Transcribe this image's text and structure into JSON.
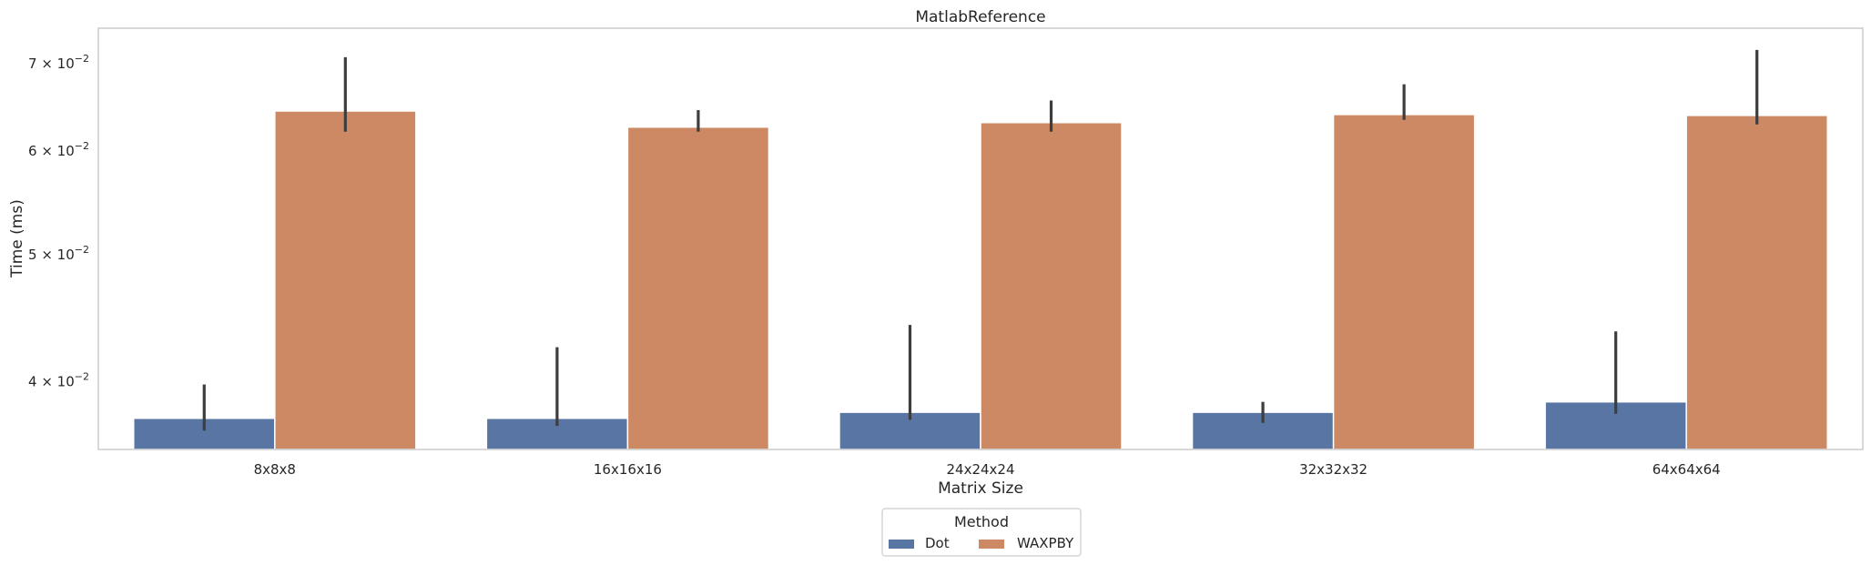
{
  "chart_data": {
    "type": "bar",
    "title": "MatlabReference",
    "xlabel": "Matrix Size",
    "ylabel": "Time (ms)",
    "yscale": "log",
    "ylim": [
      0.0355,
      0.0745
    ],
    "yticks": [
      {
        "value": 0.04,
        "base": "4",
        "exp": "−2"
      },
      {
        "value": 0.05,
        "base": "5",
        "exp": "−2"
      },
      {
        "value": 0.06,
        "base": "6",
        "exp": "−2"
      },
      {
        "value": 0.07,
        "base": "7",
        "exp": "−2"
      }
    ],
    "categories": [
      "8x8x8",
      "16x16x16",
      "24x24x24",
      "32x32x32",
      "64x64x64"
    ],
    "series": [
      {
        "name": "Dot",
        "color": "#5875a4",
        "values": [
          0.0375,
          0.0375,
          0.0379,
          0.0379,
          0.0386
        ],
        "err_low": [
          0.0367,
          0.037,
          0.0374,
          0.0372,
          0.0378
        ],
        "err_high": [
          0.0398,
          0.0425,
          0.0442,
          0.0386,
          0.0437
        ]
      },
      {
        "name": "WAXPBY",
        "color": "#cc8963",
        "values": [
          0.0644,
          0.0626,
          0.0631,
          0.064,
          0.0639
        ],
        "err_low": [
          0.0621,
          0.0621,
          0.0621,
          0.0634,
          0.0629
        ],
        "err_high": [
          0.0708,
          0.0645,
          0.0656,
          0.0675,
          0.0717
        ]
      }
    ],
    "grid": false,
    "legend": {
      "title": "Method",
      "placement": "bottom-center"
    }
  }
}
